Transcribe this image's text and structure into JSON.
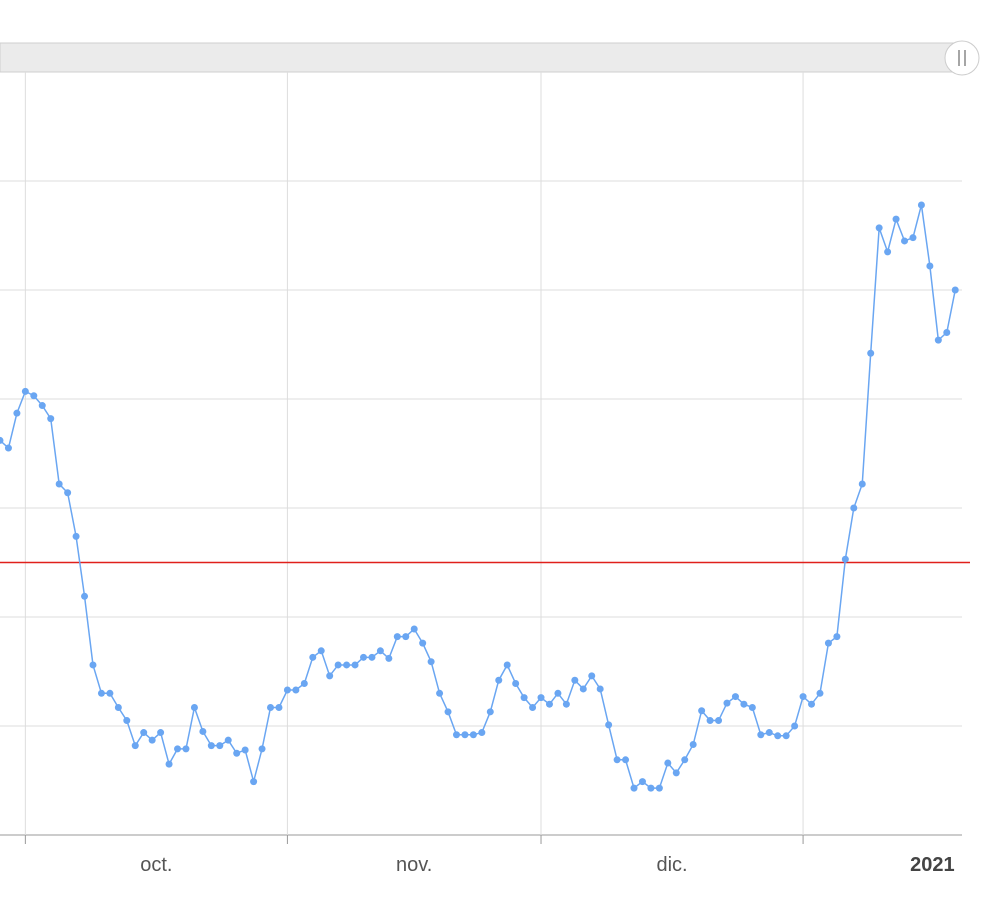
{
  "chart_data": {
    "type": "line",
    "x": [
      -3,
      -2,
      -1,
      0,
      1,
      2,
      3,
      4,
      5,
      6,
      7,
      8,
      9,
      10,
      11,
      12,
      13,
      14,
      15,
      16,
      17,
      18,
      19,
      20,
      21,
      22,
      23,
      24,
      25,
      26,
      27,
      28,
      29,
      30,
      31,
      32,
      33,
      34,
      35,
      36,
      37,
      38,
      39,
      40,
      41,
      42,
      43,
      44,
      45,
      46,
      47,
      48,
      49,
      50,
      51,
      52,
      53,
      54,
      55,
      56,
      57,
      58,
      59,
      60,
      61,
      62,
      63,
      64,
      65,
      66,
      67,
      68,
      69,
      70,
      71,
      72,
      73,
      74,
      75,
      76,
      77,
      78,
      79,
      80,
      81,
      82,
      83,
      84,
      85,
      86,
      87,
      88,
      89,
      90,
      91,
      92,
      93,
      94,
      95,
      96,
      97,
      98,
      99,
      100,
      101,
      102,
      103,
      104,
      105,
      106,
      107,
      108,
      109,
      110
    ],
    "series": [
      {
        "color": "#6aa6f2",
        "values": [
          3.62,
          3.55,
          3.87,
          4.07,
          4.03,
          3.94,
          3.82,
          3.22,
          3.14,
          2.74,
          2.19,
          1.56,
          1.3,
          1.3,
          1.17,
          1.05,
          0.82,
          0.94,
          0.87,
          0.94,
          0.65,
          0.79,
          0.79,
          1.17,
          0.95,
          0.82,
          0.82,
          0.87,
          0.75,
          0.78,
          0.49,
          0.79,
          1.17,
          1.17,
          1.33,
          1.33,
          1.39,
          1.63,
          1.69,
          1.46,
          1.56,
          1.56,
          1.56,
          1.63,
          1.63,
          1.69,
          1.62,
          1.82,
          1.82,
          1.89,
          1.76,
          1.59,
          1.3,
          1.13,
          0.92,
          0.92,
          0.92,
          0.94,
          1.13,
          1.42,
          1.56,
          1.39,
          1.26,
          1.17,
          1.26,
          1.2,
          1.3,
          1.2,
          1.42,
          1.34,
          1.46,
          1.34,
          1.01,
          0.69,
          0.69,
          0.43,
          0.49,
          0.43,
          0.43,
          0.66,
          0.57,
          0.69,
          0.83,
          1.14,
          1.05,
          1.05,
          1.21,
          1.27,
          1.2,
          1.17,
          0.92,
          0.94,
          0.91,
          0.91,
          1.0,
          1.27,
          1.2,
          1.3,
          1.76,
          1.82,
          2.53,
          3.0,
          3.22,
          4.42,
          5.57,
          5.35,
          5.65,
          5.45,
          5.48,
          5.78,
          5.22,
          4.54,
          4.61,
          5.0
        ]
      }
    ],
    "xlim": [
      -3,
      110.8
    ],
    "xticks": [
      0,
      31,
      61,
      92
    ],
    "x_labels": [
      {
        "value": 15.5,
        "label": "oct."
      },
      {
        "value": 46,
        "label": "nov."
      },
      {
        "value": 76.5,
        "label": "dic."
      },
      {
        "value": 107.3,
        "label": "2021"
      }
    ],
    "ylim": [
      0,
      7
    ],
    "yticks": [
      0,
      1,
      2,
      3,
      4,
      5,
      6
    ],
    "grid": true,
    "threshold": 2.5,
    "threshold_color": "#e0201b"
  }
}
